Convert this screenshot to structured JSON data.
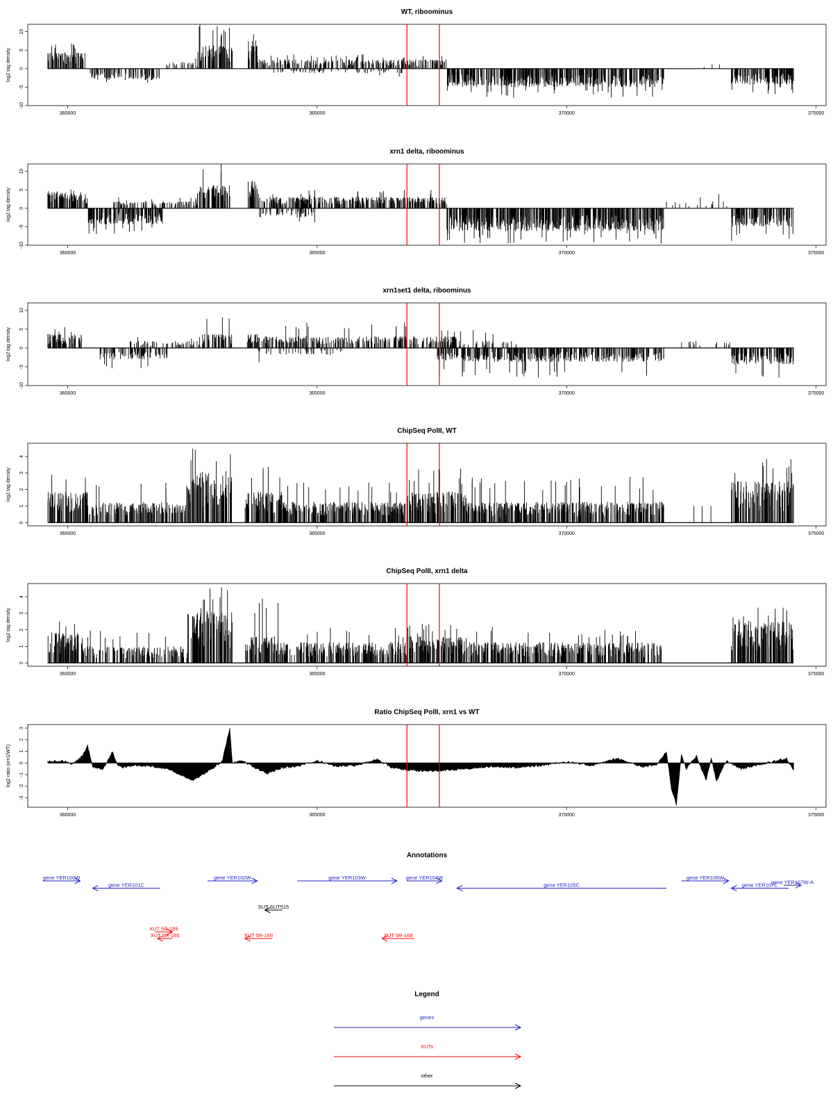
{
  "figure": {
    "xlim": [
      359200,
      375200
    ],
    "xticks": [
      "360000",
      "365000",
      "370000",
      "375000"
    ],
    "markers": [
      366800,
      367450
    ],
    "marker_color": "#ff0000"
  },
  "chart_data": [
    {
      "type": "bar",
      "title": "WT, riboominus",
      "ylabel": "log2 tag density",
      "ylim": [
        -10,
        12
      ],
      "yticks": [
        "10",
        "5",
        "0",
        "-5",
        "-10"
      ],
      "segments": [
        {
          "from": 359600,
          "to": 360350,
          "sign": 1,
          "typ": 3.5,
          "peak": 7,
          "fill": 0.95
        },
        {
          "from": 360450,
          "to": 361900,
          "sign": -1,
          "typ": 2.5,
          "peak": 5,
          "fill": 0.5
        },
        {
          "from": 361900,
          "to": 362600,
          "sign": 1,
          "typ": 1.5,
          "peak": 3,
          "fill": 0.25
        },
        {
          "from": 362600,
          "to": 363300,
          "sign": 1,
          "typ": 5,
          "peak": 12,
          "fill": 0.85
        },
        {
          "from": 363600,
          "to": 363800,
          "sign": 1,
          "typ": 6,
          "peak": 9.5,
          "fill": 1
        },
        {
          "from": 363800,
          "to": 366800,
          "sign": 1,
          "typ": 2,
          "peak": 4,
          "fill": 0.55
        },
        {
          "from": 364100,
          "to": 366800,
          "sign": -1,
          "typ": 1,
          "peak": 2.5,
          "fill": 0.2
        },
        {
          "from": 366800,
          "to": 367600,
          "sign": 1,
          "typ": 2,
          "peak": 3.5,
          "fill": 0.6
        },
        {
          "from": 367600,
          "to": 371950,
          "sign": -1,
          "typ": 4,
          "peak": 8,
          "fill": 0.95
        },
        {
          "from": 372500,
          "to": 373100,
          "sign": 1,
          "typ": 1,
          "peak": 2,
          "fill": 0.05
        },
        {
          "from": 373300,
          "to": 374550,
          "sign": -1,
          "typ": 3.5,
          "peak": 7,
          "fill": 0.9
        }
      ]
    },
    {
      "type": "bar",
      "title": "xrn1 delta, riboominus",
      "ylabel": "log2 tag density",
      "ylim": [
        -10,
        12
      ],
      "yticks": [
        "10",
        "5",
        "0",
        "-5",
        "-10"
      ],
      "segments": [
        {
          "from": 359600,
          "to": 360400,
          "sign": 1,
          "typ": 3.5,
          "peak": 6,
          "fill": 1
        },
        {
          "from": 360400,
          "to": 361900,
          "sign": -1,
          "typ": 3.5,
          "peak": 7,
          "fill": 0.9
        },
        {
          "from": 360900,
          "to": 362600,
          "sign": 1,
          "typ": 1.5,
          "peak": 3,
          "fill": 0.4
        },
        {
          "from": 362600,
          "to": 363300,
          "sign": 1,
          "typ": 5,
          "peak": 12,
          "fill": 0.9
        },
        {
          "from": 363600,
          "to": 363800,
          "sign": 1,
          "typ": 6,
          "peak": 10,
          "fill": 1
        },
        {
          "from": 363800,
          "to": 366800,
          "sign": 1,
          "typ": 2.5,
          "peak": 5,
          "fill": 0.75
        },
        {
          "from": 363800,
          "to": 365000,
          "sign": -1,
          "typ": 2,
          "peak": 4,
          "fill": 0.35
        },
        {
          "from": 366800,
          "to": 367600,
          "sign": 1,
          "typ": 2.5,
          "peak": 5,
          "fill": 0.8
        },
        {
          "from": 367600,
          "to": 371950,
          "sign": -1,
          "typ": 5,
          "peak": 9.5,
          "fill": 1
        },
        {
          "from": 372000,
          "to": 373300,
          "sign": 1,
          "typ": 1.5,
          "peak": 4,
          "fill": 0.1
        },
        {
          "from": 373300,
          "to": 374550,
          "sign": -1,
          "typ": 4,
          "peak": 9,
          "fill": 0.95
        }
      ]
    },
    {
      "type": "bar",
      "title": "xrn1set1 delta, riboominus",
      "ylabel": "log2 tag density",
      "ylim": [
        -10,
        12
      ],
      "yticks": [
        "10",
        "5",
        "0",
        "-5",
        "-10"
      ],
      "segments": [
        {
          "from": 359600,
          "to": 360300,
          "sign": 1,
          "typ": 3,
          "peak": 6,
          "fill": 0.75
        },
        {
          "from": 360600,
          "to": 362000,
          "sign": -1,
          "typ": 2.5,
          "peak": 5.5,
          "fill": 0.5
        },
        {
          "from": 361200,
          "to": 362700,
          "sign": 1,
          "typ": 1.5,
          "peak": 3,
          "fill": 0.3
        },
        {
          "from": 362700,
          "to": 363300,
          "sign": 1,
          "typ": 3,
          "peak": 10.5,
          "fill": 0.6
        },
        {
          "from": 363600,
          "to": 363800,
          "sign": 1,
          "typ": 3,
          "peak": 7,
          "fill": 0.8
        },
        {
          "from": 363800,
          "to": 366800,
          "sign": 1,
          "typ": 2.5,
          "peak": 7,
          "fill": 0.6
        },
        {
          "from": 363800,
          "to": 365500,
          "sign": -1,
          "typ": 1.5,
          "peak": 5,
          "fill": 0.2
        },
        {
          "from": 366800,
          "to": 367800,
          "sign": 1,
          "typ": 2.5,
          "peak": 6,
          "fill": 0.6
        },
        {
          "from": 367400,
          "to": 371950,
          "sign": -1,
          "typ": 3,
          "peak": 8,
          "fill": 0.75
        },
        {
          "from": 367600,
          "to": 369000,
          "sign": 1,
          "typ": 1.5,
          "peak": 5,
          "fill": 0.25
        },
        {
          "from": 372200,
          "to": 373300,
          "sign": 1,
          "typ": 1.5,
          "peak": 3.5,
          "fill": 0.12
        },
        {
          "from": 373300,
          "to": 374550,
          "sign": -1,
          "typ": 3.5,
          "peak": 8,
          "fill": 0.85
        }
      ]
    },
    {
      "type": "bar",
      "title": "ChipSeq PolII, WT",
      "ylabel": "log2 tag density",
      "ylim": [
        -0.2,
        4.8
      ],
      "yticks": [
        "0",
        "1",
        "2",
        "3",
        "4"
      ],
      "segments": [
        {
          "from": 359600,
          "to": 360400,
          "sign": 1,
          "typ": 1.5,
          "peak": 3,
          "fill": 0.95
        },
        {
          "from": 360400,
          "to": 362400,
          "sign": 1,
          "typ": 1,
          "peak": 2.5,
          "fill": 0.75
        },
        {
          "from": 362400,
          "to": 363300,
          "sign": 1,
          "typ": 2.5,
          "peak": 4.5,
          "fill": 0.95
        },
        {
          "from": 363550,
          "to": 364300,
          "sign": 1,
          "typ": 1.5,
          "peak": 3.5,
          "fill": 0.9
        },
        {
          "from": 364300,
          "to": 366800,
          "sign": 1,
          "typ": 1,
          "peak": 2.5,
          "fill": 0.85
        },
        {
          "from": 366800,
          "to": 368000,
          "sign": 1,
          "typ": 1.5,
          "peak": 3.3,
          "fill": 0.95
        },
        {
          "from": 368000,
          "to": 371950,
          "sign": 1,
          "typ": 1,
          "peak": 2.8,
          "fill": 0.85
        },
        {
          "from": 372300,
          "to": 373000,
          "sign": 1,
          "typ": 1,
          "peak": 1,
          "fill": 0.04
        },
        {
          "from": 373300,
          "to": 374550,
          "sign": 1,
          "typ": 2,
          "peak": 4,
          "fill": 0.95
        }
      ]
    },
    {
      "type": "bar",
      "title": "ChipSeq PolII, xrn1 delta",
      "ylabel": "log2 tag density",
      "ylim": [
        -0.2,
        4.8
      ],
      "yticks": [
        "0",
        "1",
        "2",
        "3",
        "4"
      ],
      "segments": [
        {
          "from": 359600,
          "to": 360300,
          "sign": 1,
          "typ": 1.5,
          "peak": 2.8,
          "fill": 0.95
        },
        {
          "from": 360300,
          "to": 362400,
          "sign": 1,
          "typ": 0.8,
          "peak": 2,
          "fill": 0.6
        },
        {
          "from": 362400,
          "to": 363300,
          "sign": 1,
          "typ": 2.5,
          "peak": 4.7,
          "fill": 0.95
        },
        {
          "from": 363550,
          "to": 364300,
          "sign": 1,
          "typ": 1.3,
          "peak": 4,
          "fill": 0.85
        },
        {
          "from": 364300,
          "to": 366800,
          "sign": 1,
          "typ": 1,
          "peak": 2.2,
          "fill": 0.75
        },
        {
          "from": 366800,
          "to": 368000,
          "sign": 1,
          "typ": 1.3,
          "peak": 2.5,
          "fill": 0.9
        },
        {
          "from": 368000,
          "to": 371950,
          "sign": 1,
          "typ": 1,
          "peak": 2.2,
          "fill": 0.8
        },
        {
          "from": 373300,
          "to": 374550,
          "sign": 1,
          "typ": 2,
          "peak": 3.5,
          "fill": 0.95
        }
      ]
    },
    {
      "type": "area",
      "title": "Ratio ChipSeq PolII, xrn1 vs WT",
      "ylabel": "log2 ratio (xrn1/WT)",
      "ylim": [
        -3.8,
        3.3
      ],
      "yticks": [
        "3",
        "2",
        "1",
        "0",
        "-1",
        "-2",
        "-3"
      ],
      "x": [
        359600,
        359900,
        360100,
        360300,
        360400,
        360500,
        360700,
        360900,
        361000,
        361100,
        361400,
        361700,
        362000,
        362200,
        362500,
        362700,
        362900,
        363100,
        363250,
        363300,
        363500,
        363700,
        364000,
        364300,
        364600,
        365000,
        365400,
        365800,
        366200,
        366500,
        366800,
        367200,
        367600,
        368000,
        368500,
        369000,
        369500,
        370000,
        370500,
        371000,
        371500,
        371800,
        372000,
        372100,
        372200,
        372300,
        372400,
        372600,
        372800,
        372900,
        373000,
        373200,
        373500,
        373800,
        374100,
        374400,
        374550
      ],
      "y": [
        0.1,
        0.2,
        -0.1,
        0.6,
        1.5,
        -0.3,
        -0.6,
        1,
        -0.2,
        -0.4,
        -0.2,
        -0.3,
        -0.5,
        -0.9,
        -1.5,
        -1,
        -0.5,
        0.2,
        3,
        0,
        0.2,
        -0.3,
        -0.9,
        -0.4,
        -0.3,
        0.2,
        -0.3,
        -0.2,
        0.3,
        -0.4,
        -0.6,
        -0.7,
        -0.6,
        -0.5,
        -0.3,
        -0.4,
        -0.2,
        0.1,
        -0.2,
        0.4,
        -0.3,
        -0.2,
        1,
        -2.2,
        -3.6,
        0.8,
        -0.5,
        0.6,
        -1.5,
        0.5,
        -1.6,
        0.2,
        -0.5,
        -0.2,
        0.1,
        0.4,
        -0.6
      ]
    }
  ],
  "annotations": {
    "title": "Annotations",
    "items": [
      {
        "label": "gene YER100W",
        "start": 359500,
        "end": 360250,
        "dir": "right",
        "row": 0,
        "color": "#2020c0"
      },
      {
        "label": "gene YER101C",
        "start": 360500,
        "end": 361850,
        "dir": "left",
        "row": 1,
        "color": "#2020c0"
      },
      {
        "label": "gene YER102W",
        "start": 362800,
        "end": 363800,
        "dir": "right",
        "row": 0,
        "color": "#2020c0"
      },
      {
        "label": "gene YER103W",
        "start": 364600,
        "end": 366600,
        "dir": "right",
        "row": 0,
        "color": "#2020c0"
      },
      {
        "label": "gene YER104W",
        "start": 366800,
        "end": 367500,
        "dir": "right",
        "row": 0,
        "color": "#2020c0"
      },
      {
        "label": "gene YER105C",
        "start": 367800,
        "end": 372000,
        "dir": "left",
        "row": 1,
        "color": "#2020c0"
      },
      {
        "label": "gene YER106W",
        "start": 372300,
        "end": 373250,
        "dir": "right",
        "row": 0,
        "color": "#2020c0"
      },
      {
        "label": "gene YER107C",
        "start": 373300,
        "end": 374450,
        "dir": "left",
        "row": 1,
        "color": "#2020c0"
      },
      {
        "label": "gene YER107W-A",
        "start": 374350,
        "end": 374700,
        "dir": "right",
        "row": 0.6,
        "color": "#2020c0"
      },
      {
        "label": "SUT SUT515",
        "start": 363950,
        "end": 364300,
        "dir": "left",
        "row": 4,
        "color": "#000000"
      },
      {
        "label": "XUT 5R-185",
        "start": 361750,
        "end": 362100,
        "dir": "right",
        "row": 7,
        "color": "#ff0000"
      },
      {
        "label": "XUT 5R-165",
        "start": 361800,
        "end": 362100,
        "dir": "left",
        "row": 7.9,
        "color": "#ff0000"
      },
      {
        "label": "XUT 5R-166",
        "start": 363550,
        "end": 364100,
        "dir": "left",
        "row": 7.9,
        "color": "#ff0000"
      },
      {
        "label": "XUT 5R-168",
        "start": 366300,
        "end": 366950,
        "dir": "left",
        "row": 7.9,
        "color": "#ff0000"
      }
    ]
  },
  "legend": {
    "title": "Legend",
    "items": [
      {
        "label": "genes",
        "color": "#2020c0"
      },
      {
        "label": "XUTs",
        "color": "#ff0000"
      },
      {
        "label": "other",
        "color": "#000000"
      }
    ]
  }
}
